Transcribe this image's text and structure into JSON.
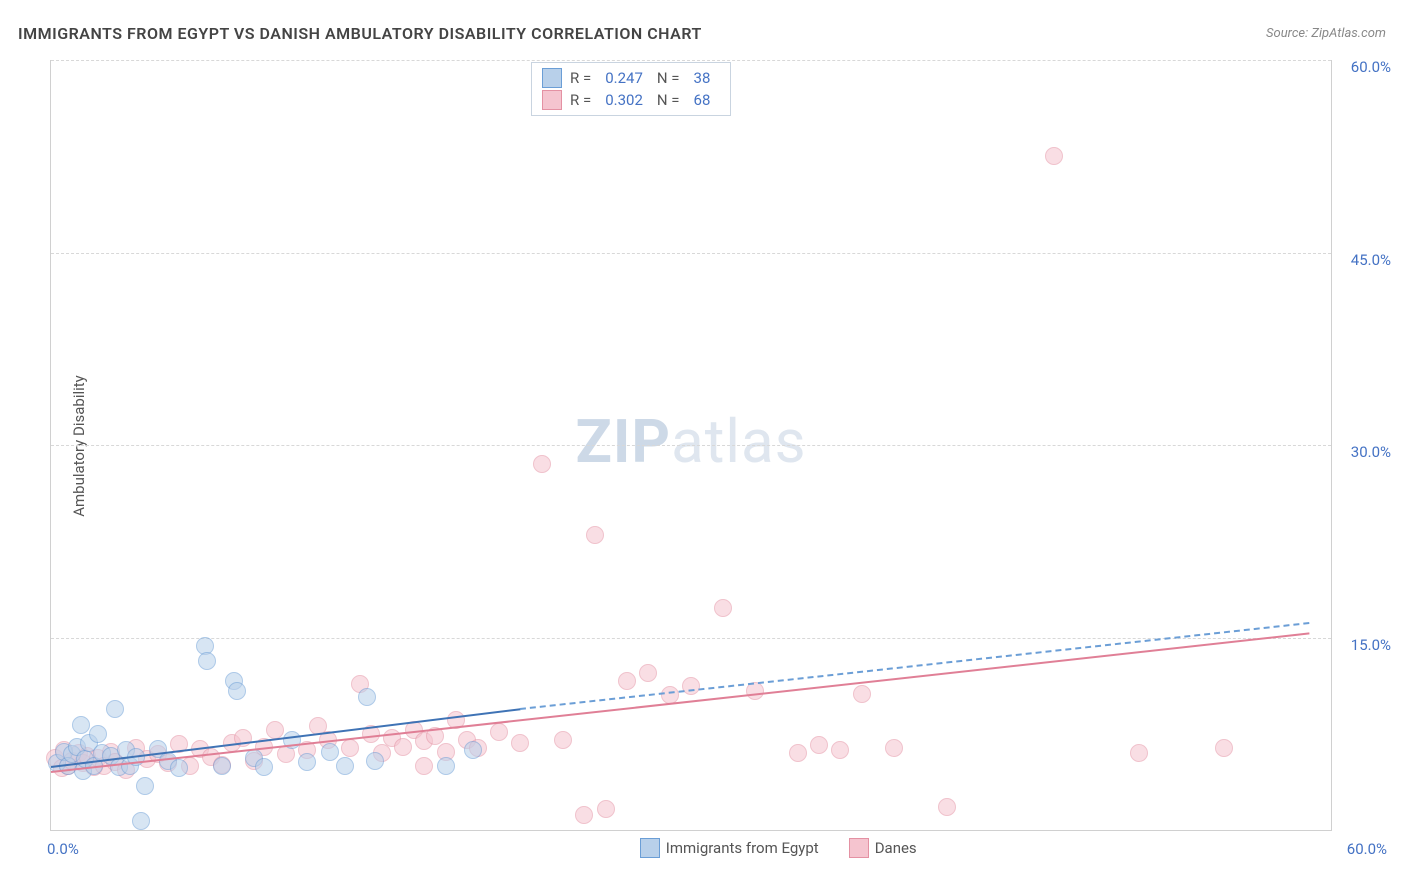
{
  "title": "IMMIGRANTS FROM EGYPT VS DANISH AMBULATORY DISABILITY CORRELATION CHART",
  "source": "Source: ZipAtlas.com",
  "yaxis_title": "Ambulatory Disability",
  "watermark_bold": "ZIP",
  "watermark_light": "atlas",
  "chart": {
    "type": "scatter",
    "xlim": [
      0,
      60
    ],
    "ylim": [
      0,
      60
    ],
    "ytick_step": 15,
    "ytick_labels": [
      "15.0%",
      "30.0%",
      "45.0%",
      "60.0%"
    ],
    "xtick_min_label": "0.0%",
    "xtick_max_label": "60.0%",
    "grid_color": "#d8d8d8",
    "title_fontsize": 16,
    "label_fontsize": 15,
    "tick_color": "#4472c4"
  },
  "series": {
    "series1": {
      "label": "Immigrants from Egypt",
      "fill": "#b8d0ea",
      "stroke": "#6b9ed6",
      "fill_opacity": 0.55,
      "marker_radius": 8,
      "R": "0.247",
      "N": "38",
      "trend": {
        "x1": 0,
        "y1": 5.0,
        "x2": 22,
        "y2": 9.5,
        "color": "#3f73b5",
        "width": 2
      },
      "trend_extrap": {
        "x1": 22,
        "y1": 9.5,
        "x2": 59,
        "y2": 16.2,
        "color": "#6b9ed6"
      },
      "points": [
        [
          0.3,
          5.2
        ],
        [
          0.6,
          6.1
        ],
        [
          0.8,
          5.0
        ],
        [
          1.0,
          5.9
        ],
        [
          1.2,
          6.5
        ],
        [
          1.4,
          8.2
        ],
        [
          1.5,
          4.6
        ],
        [
          1.6,
          5.5
        ],
        [
          1.8,
          6.8
        ],
        [
          2.0,
          5.0
        ],
        [
          2.2,
          7.5
        ],
        [
          2.4,
          6.0
        ],
        [
          2.8,
          5.8
        ],
        [
          3.0,
          9.4
        ],
        [
          3.2,
          4.9
        ],
        [
          3.5,
          6.2
        ],
        [
          3.7,
          5.0
        ],
        [
          4.0,
          5.7
        ],
        [
          4.4,
          3.4
        ],
        [
          5.0,
          6.3
        ],
        [
          5.5,
          5.4
        ],
        [
          6.0,
          4.8
        ],
        [
          7.2,
          14.3
        ],
        [
          7.3,
          13.2
        ],
        [
          8.0,
          5.0
        ],
        [
          8.6,
          11.6
        ],
        [
          8.7,
          10.8
        ],
        [
          9.5,
          5.6
        ],
        [
          10.0,
          4.9
        ],
        [
          11.3,
          7.0
        ],
        [
          12.0,
          5.3
        ],
        [
          13.1,
          6.1
        ],
        [
          13.8,
          5.0
        ],
        [
          14.8,
          10.4
        ],
        [
          15.2,
          5.4
        ],
        [
          18.5,
          5.0
        ],
        [
          19.8,
          6.2
        ],
        [
          4.2,
          0.7
        ]
      ]
    },
    "series2": {
      "label": "Danes",
      "fill": "#f5c4cf",
      "stroke": "#e491a3",
      "fill_opacity": 0.55,
      "marker_radius": 8,
      "R": "0.302",
      "N": "68",
      "trend": {
        "x1": 0,
        "y1": 4.6,
        "x2": 59,
        "y2": 15.4,
        "color": "#e07f96",
        "width": 2
      },
      "points": [
        [
          0.2,
          5.6
        ],
        [
          0.5,
          4.8
        ],
        [
          0.6,
          6.2
        ],
        [
          0.8,
          5.0
        ],
        [
          1.0,
          5.4
        ],
        [
          1.3,
          6.0
        ],
        [
          1.5,
          5.2
        ],
        [
          1.7,
          5.8
        ],
        [
          2.0,
          4.9
        ],
        [
          2.2,
          5.6
        ],
        [
          2.5,
          5.0
        ],
        [
          2.8,
          6.1
        ],
        [
          3.0,
          5.3
        ],
        [
          3.5,
          4.7
        ],
        [
          4.0,
          6.4
        ],
        [
          4.5,
          5.5
        ],
        [
          5.0,
          5.9
        ],
        [
          5.5,
          5.2
        ],
        [
          6.0,
          6.7
        ],
        [
          6.5,
          5.0
        ],
        [
          7.0,
          6.3
        ],
        [
          7.5,
          5.7
        ],
        [
          8.0,
          5.1
        ],
        [
          8.5,
          6.8
        ],
        [
          9.0,
          7.2
        ],
        [
          9.5,
          5.4
        ],
        [
          10.0,
          6.5
        ],
        [
          10.5,
          7.8
        ],
        [
          11.0,
          5.9
        ],
        [
          12.0,
          6.2
        ],
        [
          12.5,
          8.1
        ],
        [
          13.0,
          7.0
        ],
        [
          14.0,
          6.4
        ],
        [
          14.5,
          11.4
        ],
        [
          15.0,
          7.5
        ],
        [
          15.5,
          6.0
        ],
        [
          16.0,
          7.2
        ],
        [
          16.5,
          6.5
        ],
        [
          17.0,
          7.8
        ],
        [
          17.5,
          6.9
        ],
        [
          18.0,
          7.3
        ],
        [
          18.5,
          6.1
        ],
        [
          19.0,
          8.6
        ],
        [
          19.5,
          7.0
        ],
        [
          20.0,
          6.4
        ],
        [
          21.0,
          7.6
        ],
        [
          22.0,
          6.8
        ],
        [
          23.0,
          28.5
        ],
        [
          24.0,
          7.0
        ],
        [
          25.0,
          1.2
        ],
        [
          25.5,
          23.0
        ],
        [
          26.0,
          1.6
        ],
        [
          27.0,
          11.6
        ],
        [
          28.0,
          12.2
        ],
        [
          29.0,
          10.5
        ],
        [
          30.0,
          11.2
        ],
        [
          31.5,
          17.3
        ],
        [
          33.0,
          10.8
        ],
        [
          35.0,
          6.0
        ],
        [
          36.0,
          6.6
        ],
        [
          37.0,
          6.2
        ],
        [
          38.0,
          10.6
        ],
        [
          39.5,
          6.4
        ],
        [
          42.0,
          1.8
        ],
        [
          47.0,
          52.5
        ],
        [
          51.0,
          6.0
        ],
        [
          55.0,
          6.4
        ],
        [
          17.5,
          5.0
        ]
      ]
    }
  },
  "legend": {
    "R_label": "R =",
    "N_label": "N ="
  }
}
